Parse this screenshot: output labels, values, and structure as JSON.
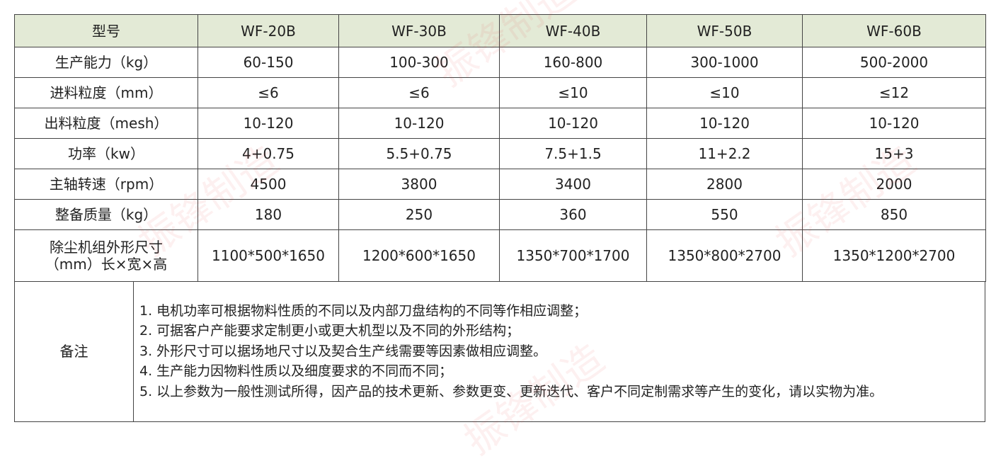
{
  "watermark": "振锋制造",
  "header": {
    "label": "型号",
    "models": [
      "WF-20B",
      "WF-30B",
      "WF-40B",
      "WF-50B",
      "WF-60B"
    ]
  },
  "rows": [
    {
      "label": "生产能力（kg）",
      "values": [
        "60-150",
        "100-300",
        "160-800",
        "300-1000",
        "500-2000"
      ]
    },
    {
      "label": "进料粒度（mm）",
      "values": [
        "≤6",
        "≤6",
        "≤10",
        "≤10",
        "≤12"
      ]
    },
    {
      "label": "出料粒度（mesh）",
      "values": [
        "10-120",
        "10-120",
        "10-120",
        "10-120",
        "10-120"
      ]
    },
    {
      "label": "功率（kw）",
      "values": [
        "4+0.75",
        "5.5+0.75",
        "7.5+1.5",
        "11+2.2",
        "15+3"
      ]
    },
    {
      "label": "主轴转速（rpm）",
      "values": [
        "4500",
        "3800",
        "3400",
        "2800",
        "2000"
      ]
    },
    {
      "label": "整备质量（kg）",
      "values": [
        "180",
        "250",
        "360",
        "550",
        "850"
      ]
    }
  ],
  "dimensions": {
    "label_line1": "除尘机组外形尺寸",
    "label_line2": "（mm）长×宽×高",
    "values": [
      "1100*500*1650",
      "1200*600*1650",
      "1350*700*1700",
      "1350*800*2700",
      "1350*1200*2700"
    ]
  },
  "notes": {
    "label": "备注",
    "items": [
      "1. 电机功率可根据物料性质的不同以及内部刀盘结构的不同等作相应调整；",
      "2. 可据客户产能要求定制更小或更大机型以及不同的外形结构；",
      "3. 外形尺寸可以据场地尺寸以及契合生产线需要等因素做相应调整。",
      "4. 生产能力因物料性质以及细度要求的不同而不同；",
      "5. 以上参数为一般性测试所得，因产品的技术更新、参数更变、更新迭代、客户不同定制需求等产生的变化，请以实物为准。"
    ]
  },
  "colors": {
    "header_bg": "#e3ead6",
    "border": "#444444",
    "watermark": "#e63c3c"
  }
}
